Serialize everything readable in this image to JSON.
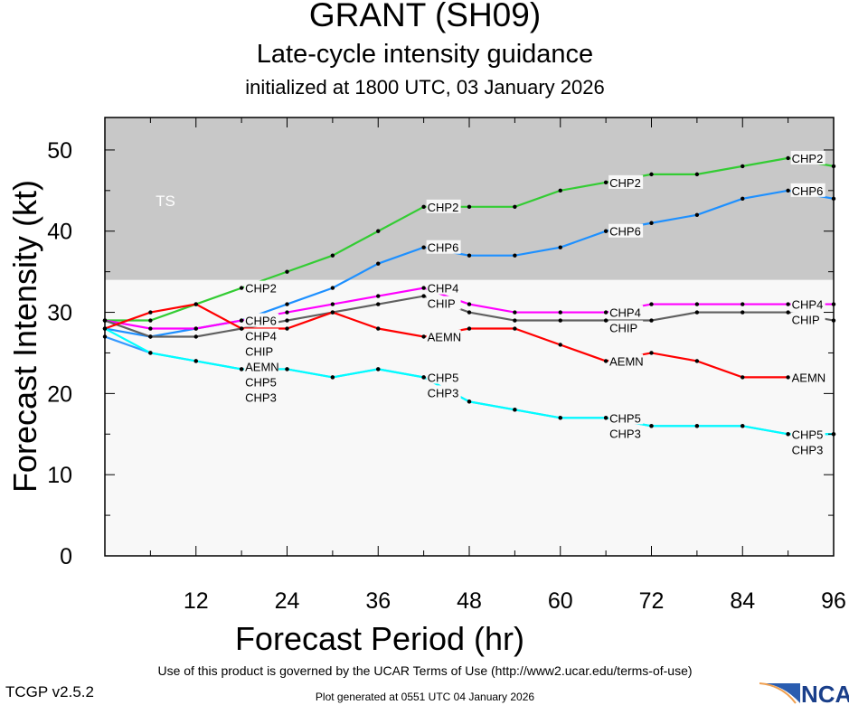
{
  "title": "GRANT (SH09)",
  "subtitle": "Late-cycle intensity guidance",
  "init_line": "initialized at 1800 UTC, 03 January 2026",
  "footer": {
    "terms": "Use of this product is governed by the UCAR Terms of Use (http://www2.ucar.edu/terms-of-use)",
    "version": "TCGP v2.5.2",
    "generated": "Plot generated at 0551 UTC   04 January 2026",
    "logo": "NCAR"
  },
  "chart_data": {
    "type": "line",
    "xlabel": "Forecast Period (hr)",
    "ylabel": "Forecast Intensity (kt)",
    "xlim": [
      0,
      96
    ],
    "ylim": [
      0,
      54
    ],
    "xticks": [
      12,
      24,
      36,
      48,
      60,
      72,
      84,
      96
    ],
    "yticks": [
      0,
      10,
      20,
      30,
      40,
      50
    ],
    "bands": [
      {
        "label": "TS",
        "from": 34,
        "to": 54,
        "color": "#c8c8c8"
      }
    ],
    "background": "#f8f8f8",
    "x": [
      0,
      6,
      12,
      18,
      24,
      30,
      36,
      42,
      48,
      54,
      60,
      66,
      72,
      78,
      84,
      90,
      96
    ],
    "series": [
      {
        "name": "CHP2",
        "color": "#33cc33",
        "values": [
          29,
          29,
          31,
          33,
          35,
          37,
          40,
          43,
          43,
          43,
          45,
          46,
          47,
          47,
          48,
          49,
          48
        ]
      },
      {
        "name": "CHP6",
        "color": "#1e90ff",
        "values": [
          28,
          27,
          28,
          29,
          31,
          33,
          36,
          38,
          37,
          37,
          38,
          40,
          41,
          42,
          44,
          45,
          44
        ]
      },
      {
        "name": "CHP4",
        "color": "#ff00ff",
        "values": [
          29,
          28,
          28,
          29,
          30,
          31,
          32,
          33,
          31,
          30,
          30,
          30,
          31,
          31,
          31,
          31,
          31
        ]
      },
      {
        "name": "CHIP",
        "color": "#606060",
        "values": [
          29,
          27,
          27,
          28,
          29,
          30,
          31,
          32,
          30,
          29,
          29,
          29,
          29,
          30,
          30,
          30,
          29
        ]
      },
      {
        "name": "AEMN",
        "color": "#ff0000",
        "values": [
          28,
          30,
          31,
          28,
          28,
          30,
          28,
          27,
          28,
          28,
          26,
          24,
          25,
          24,
          22,
          22,
          null
        ]
      },
      {
        "name": "CHP5",
        "color": "#3399ff",
        "values": [
          27,
          25,
          24,
          23,
          23,
          22,
          23,
          22,
          19,
          18,
          17,
          17,
          16,
          16,
          16,
          15,
          15
        ]
      },
      {
        "name": "CHP3",
        "color": "#00ffff",
        "values": [
          28,
          25,
          24,
          23,
          23,
          22,
          23,
          22,
          19,
          18,
          17,
          17,
          16,
          16,
          16,
          15,
          15
        ]
      }
    ],
    "label_hours": [
      18,
      42,
      66,
      90
    ]
  }
}
